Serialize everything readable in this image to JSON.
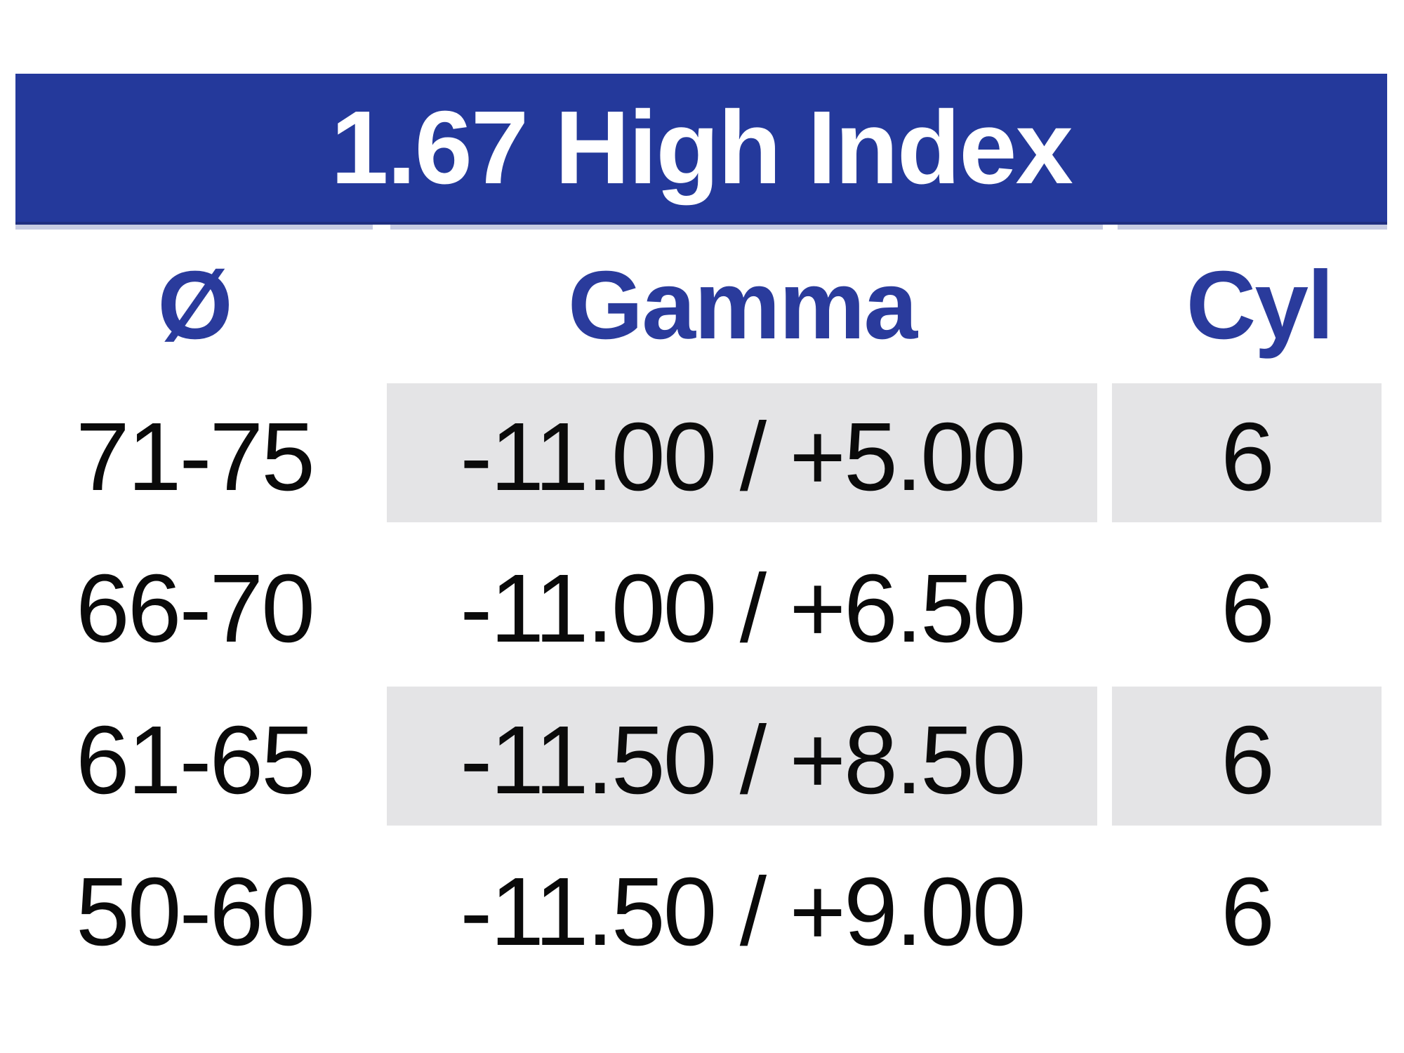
{
  "table": {
    "title": "1.67 High Index",
    "columns": [
      {
        "label": "Ø"
      },
      {
        "label": "Gamma"
      },
      {
        "label": "Cyl"
      }
    ],
    "rows": [
      {
        "diameter": "71-75",
        "gamma": "-11.00 / +5.00",
        "cyl": "6"
      },
      {
        "diameter": "66-70",
        "gamma": "-11.00 / +6.50",
        "cyl": "6"
      },
      {
        "diameter": "61-65",
        "gamma": "-11.50 / +8.50",
        "cyl": "6"
      },
      {
        "diameter": "50-60",
        "gamma": "-11.50 / +9.00",
        "cyl": "6"
      }
    ],
    "colors": {
      "header_bar_blue": "#24399B",
      "header_bar_edge": "#1F2F80",
      "header_text_blue": "#2A3B9C",
      "row_shade_gray": "#E4E4E6",
      "body_text_black": "#0A0A0A",
      "underline_lavender": "#C7CCE3"
    }
  }
}
